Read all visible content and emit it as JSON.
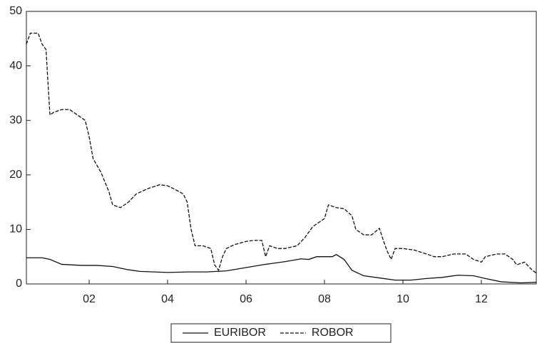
{
  "chart_data": {
    "type": "line",
    "xlim": [
      2000.4,
      2013.4
    ],
    "xticks": [
      {
        "value": 2002,
        "label": "02"
      },
      {
        "value": 2004,
        "label": "04"
      },
      {
        "value": 2006,
        "label": "06"
      },
      {
        "value": 2008,
        "label": "08"
      },
      {
        "value": 2010,
        "label": "10"
      },
      {
        "value": 2012,
        "label": "12"
      }
    ],
    "ylim": [
      0,
      50
    ],
    "yticks": [
      0,
      10,
      20,
      30,
      40,
      50
    ],
    "legend": "bottom",
    "series": [
      {
        "name": "EURIBOR",
        "color": "#111111",
        "line_style": "solid",
        "x": [
          2000.4,
          2000.8,
          2001.0,
          2001.3,
          2001.8,
          2002.2,
          2002.6,
          2003.0,
          2003.3,
          2004.0,
          2004.5,
          2005.0,
          2005.5,
          2006.0,
          2006.5,
          2007.0,
          2007.4,
          2007.6,
          2007.8,
          2008.2,
          2008.3,
          2008.5,
          2008.7,
          2009.0,
          2009.4,
          2009.8,
          2010.2,
          2010.6,
          2011.0,
          2011.4,
          2011.8,
          2012.1,
          2012.5,
          2013.0,
          2013.4
        ],
        "values": [
          4.8,
          4.8,
          4.5,
          3.6,
          3.4,
          3.4,
          3.2,
          2.6,
          2.3,
          2.1,
          2.2,
          2.2,
          2.4,
          3.0,
          3.6,
          4.1,
          4.6,
          4.5,
          5.0,
          5.0,
          5.4,
          4.5,
          2.5,
          1.5,
          1.1,
          0.7,
          0.7,
          1.0,
          1.2,
          1.6,
          1.5,
          1.0,
          0.4,
          0.2,
          0.3
        ]
      },
      {
        "name": "ROBOR",
        "color": "#111111",
        "line_style": "dashed",
        "x": [
          2000.4,
          2000.5,
          2000.7,
          2000.8,
          2000.9,
          2001.0,
          2001.1,
          2001.3,
          2001.5,
          2001.7,
          2001.9,
          2002.0,
          2002.1,
          2002.3,
          2002.5,
          2002.6,
          2002.8,
          2003.0,
          2003.2,
          2003.5,
          2003.8,
          2004.0,
          2004.2,
          2004.4,
          2004.5,
          2004.6,
          2004.7,
          2004.9,
          2005.1,
          2005.2,
          2005.3,
          2005.4,
          2005.5,
          2005.7,
          2006.0,
          2006.2,
          2006.4,
          2006.5,
          2006.6,
          2006.8,
          2007.0,
          2007.3,
          2007.5,
          2007.7,
          2007.9,
          2008.0,
          2008.1,
          2008.3,
          2008.5,
          2008.7,
          2008.8,
          2009.0,
          2009.2,
          2009.4,
          2009.5,
          2009.6,
          2009.7,
          2009.8,
          2010.0,
          2010.3,
          2010.6,
          2010.8,
          2011.0,
          2011.3,
          2011.6,
          2011.8,
          2012.0,
          2012.1,
          2012.4,
          2012.6,
          2012.8,
          2012.9,
          2013.1,
          2013.3,
          2013.4
        ],
        "values": [
          44,
          46,
          46,
          44,
          43,
          31,
          31.5,
          32,
          32,
          31,
          30,
          27,
          23,
          20.5,
          17,
          14.5,
          14,
          15,
          16.5,
          17.5,
          18.2,
          18,
          17.3,
          16.5,
          15,
          10,
          7,
          7,
          6.5,
          3.5,
          2.5,
          5,
          6.5,
          7.2,
          7.8,
          8,
          8,
          5,
          7,
          6.5,
          6.5,
          7,
          8.5,
          10.5,
          11.5,
          12,
          14.5,
          14,
          13.8,
          12.5,
          10,
          9,
          9,
          10.2,
          8,
          6,
          4.5,
          6.5,
          6.5,
          6.2,
          5.5,
          5,
          5,
          5.5,
          5.5,
          4.5,
          4,
          5,
          5.5,
          5.5,
          4.5,
          3.5,
          4,
          2.5,
          2
        ]
      }
    ]
  }
}
